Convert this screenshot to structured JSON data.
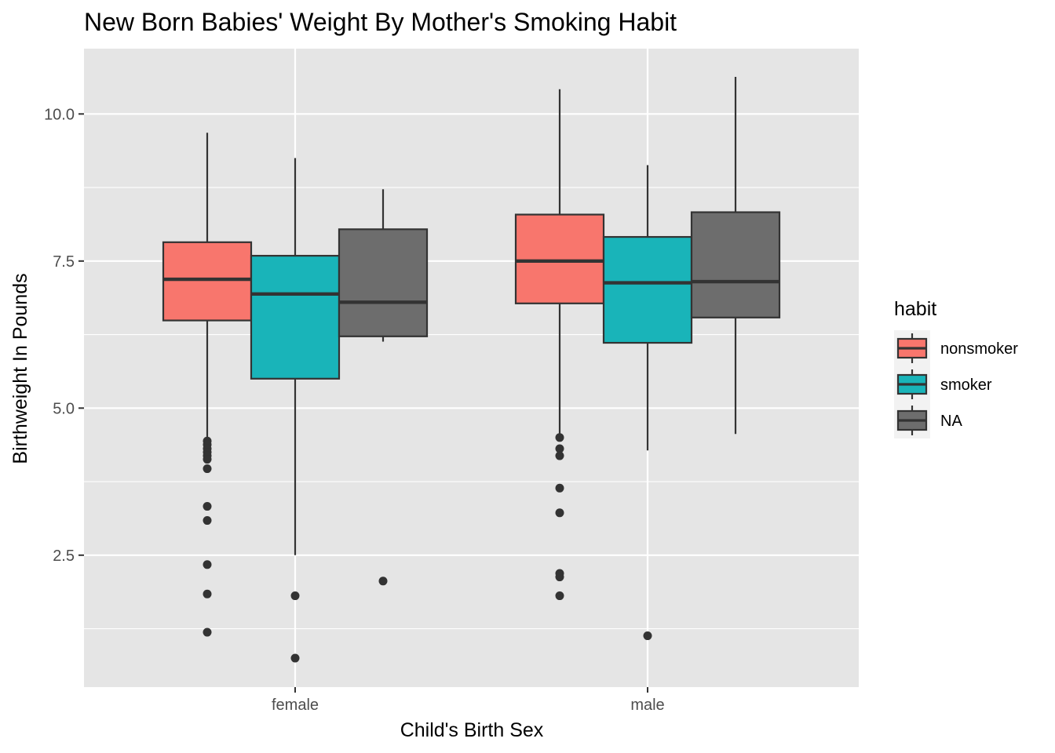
{
  "chart_data": {
    "type": "box",
    "title": "New Born Babies' Weight By Mother's Smoking Habit",
    "xlabel": "Child's Birth Sex",
    "ylabel": "Birthweight In Pounds",
    "categories": [
      "female",
      "male"
    ],
    "ylim": [
      0.55,
      11.0
    ],
    "yticks": [
      2.5,
      5.0,
      7.5,
      10.0
    ],
    "ytick_labels": [
      "2.5",
      "5.0",
      "7.5",
      "10.0"
    ],
    "grid": true,
    "background": "#e5e5e5",
    "legend": {
      "title": "habit",
      "position": "right",
      "entries": [
        "nonsmoker",
        "smoker",
        "NA"
      ]
    },
    "series": [
      {
        "key": "nonsmoker",
        "color": "#f8766d",
        "boxes": [
          {
            "category": "female",
            "lower_whisker": 4.5,
            "q1": 6.49,
            "median": 7.19,
            "q3": 7.82,
            "upper_whisker": 9.68,
            "outliers": [
              4.44,
              4.38,
              4.31,
              4.25,
              4.19,
              4.13,
              3.97,
              3.33,
              3.09,
              2.34,
              1.84,
              1.19
            ]
          },
          {
            "category": "male",
            "lower_whisker": 4.56,
            "q1": 6.78,
            "median": 7.5,
            "q3": 8.29,
            "upper_whisker": 10.42,
            "outliers": [
              4.5,
              4.31,
              4.19,
              3.64,
              3.22,
              2.19,
              2.13,
              1.81
            ]
          }
        ]
      },
      {
        "key": "smoker",
        "color": "#19b4b9",
        "boxes": [
          {
            "category": "female",
            "lower_whisker": 2.5,
            "q1": 5.5,
            "median": 6.94,
            "q3": 7.59,
            "upper_whisker": 9.25,
            "outliers": [
              1.81,
              0.75
            ]
          },
          {
            "category": "male",
            "lower_whisker": 4.28,
            "q1": 6.11,
            "median": 7.13,
            "q3": 7.91,
            "upper_whisker": 9.13,
            "outliers": [
              1.13
            ]
          }
        ]
      },
      {
        "key": "NA",
        "color": "#6d6d6d",
        "boxes": [
          {
            "category": "female",
            "lower_whisker": 6.13,
            "q1": 6.22,
            "median": 6.8,
            "q3": 8.04,
            "upper_whisker": 8.72,
            "outliers": [
              2.06
            ]
          },
          {
            "category": "male",
            "lower_whisker": 4.56,
            "q1": 6.54,
            "median": 7.15,
            "q3": 8.33,
            "upper_whisker": 10.63,
            "outliers": []
          }
        ]
      }
    ]
  }
}
